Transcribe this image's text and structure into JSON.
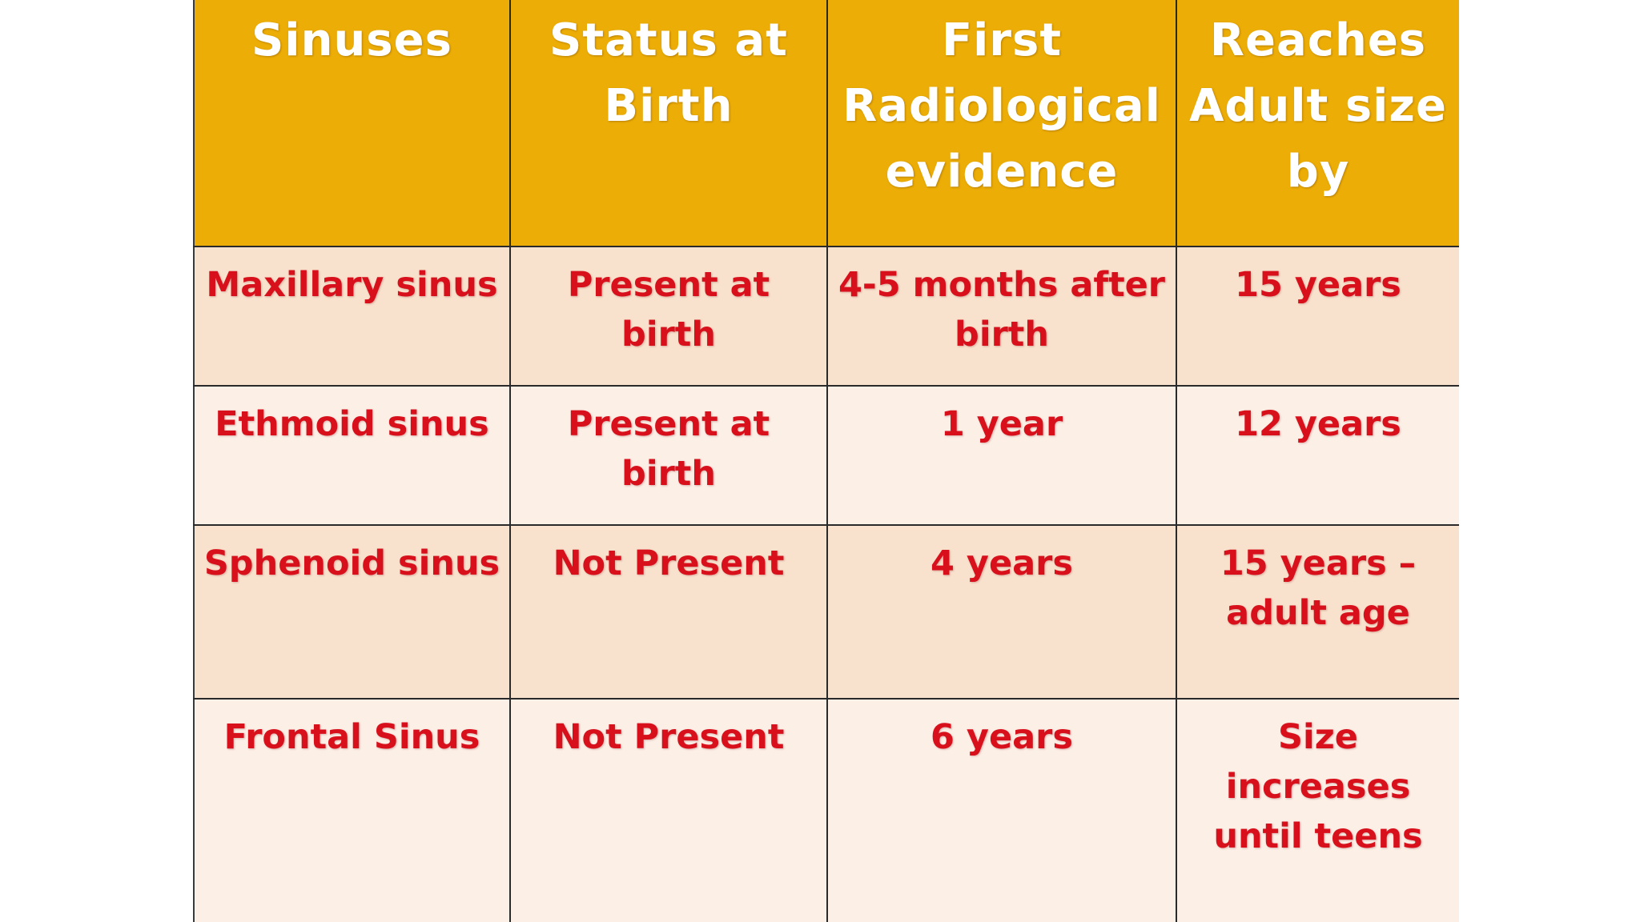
{
  "table": {
    "headers": [
      "Sinuses",
      "Status at Birth",
      "First Radiological evidence",
      "Reaches Adult size by"
    ],
    "rows": [
      [
        "Maxillary sinus",
        "Present at birth",
        "4-5 months after birth",
        "15 years"
      ],
      [
        "Ethmoid sinus",
        "Present at birth",
        "1 year",
        "12 years"
      ],
      [
        "Sphenoid sinus",
        "Not Present",
        "4 years",
        "15 years – adult age"
      ],
      [
        "Frontal Sinus",
        "Not Present",
        "6 years",
        "Size increases until teens"
      ]
    ]
  },
  "colors": {
    "header_background": "#ecad06",
    "header_text": "#ffffff",
    "body_text": "#d8101c",
    "row_odd_background": "#f8e2cd",
    "row_even_background": "#fbefe6",
    "border": "#2a2a2a"
  }
}
